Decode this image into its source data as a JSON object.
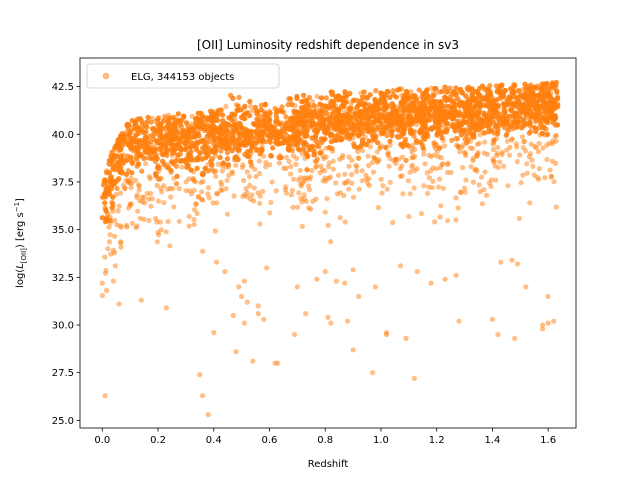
{
  "chart_data": {
    "type": "scatter",
    "title": "[OII] Luminosity redshift dependence in sv3",
    "xlabel": "Redshift",
    "ylabel_parts": {
      "main": "log(",
      "italic": "L",
      "sub": "[OII]",
      "mid": ") [erg s",
      "sup": "−1",
      "end": "]"
    },
    "xlim": [
      -0.08,
      1.7
    ],
    "ylim": [
      24.6,
      44.0
    ],
    "xticks": [
      0.0,
      0.2,
      0.4,
      0.6,
      0.8,
      1.0,
      1.2,
      1.4,
      1.6
    ],
    "xtick_labels": [
      "0.0",
      "0.2",
      "0.4",
      "0.6",
      "0.8",
      "1.0",
      "1.2",
      "1.4",
      "1.6"
    ],
    "yticks": [
      25.0,
      27.5,
      30.0,
      32.5,
      35.0,
      37.5,
      40.0,
      42.5
    ],
    "ytick_labels": [
      "25.0",
      "27.5",
      "30.0",
      "32.5",
      "35.0",
      "37.5",
      "40.0",
      "42.5"
    ],
    "grid": false,
    "legend": {
      "position": "top-left",
      "entries": [
        "ELG, 344153 objects"
      ]
    },
    "series": [
      {
        "name": "ELG, 344153 objects",
        "color": "#ff7f0e",
        "alpha": 0.5,
        "outliers": [
          [
            0.0,
            32.2
          ],
          [
            0.01,
            26.3
          ],
          [
            0.02,
            34.0
          ],
          [
            0.04,
            32.3
          ],
          [
            0.06,
            31.1
          ],
          [
            0.14,
            31.3
          ],
          [
            0.23,
            30.9
          ],
          [
            0.35,
            27.4
          ],
          [
            0.36,
            26.3
          ],
          [
            0.38,
            25.3
          ],
          [
            0.4,
            29.6
          ],
          [
            0.41,
            33.3
          ],
          [
            0.44,
            32.8
          ],
          [
            0.47,
            30.5
          ],
          [
            0.48,
            28.6
          ],
          [
            0.49,
            32.0
          ],
          [
            0.5,
            31.5
          ],
          [
            0.51,
            32.3
          ],
          [
            0.51,
            30.1
          ],
          [
            0.52,
            31.2
          ],
          [
            0.54,
            28.1
          ],
          [
            0.56,
            30.6
          ],
          [
            0.56,
            31.0
          ],
          [
            0.58,
            30.3
          ],
          [
            0.59,
            33.0
          ],
          [
            0.62,
            28.0
          ],
          [
            0.63,
            28.0
          ],
          [
            0.69,
            29.5
          ],
          [
            0.7,
            32.0
          ],
          [
            0.73,
            30.6
          ],
          [
            0.77,
            32.4
          ],
          [
            0.8,
            32.8
          ],
          [
            0.81,
            30.4
          ],
          [
            0.82,
            30.1
          ],
          [
            0.84,
            32.3
          ],
          [
            0.87,
            32.2
          ],
          [
            0.88,
            30.2
          ],
          [
            0.9,
            28.7
          ],
          [
            0.9,
            32.9
          ],
          [
            0.92,
            31.5
          ],
          [
            0.97,
            27.5
          ],
          [
            0.98,
            32.0
          ],
          [
            1.02,
            29.5
          ],
          [
            1.02,
            29.6
          ],
          [
            1.07,
            33.1
          ],
          [
            1.09,
            29.3
          ],
          [
            1.12,
            27.2
          ],
          [
            1.13,
            32.8
          ],
          [
            1.18,
            32.2
          ],
          [
            1.23,
            32.4
          ],
          [
            1.27,
            32.6
          ],
          [
            1.28,
            30.2
          ],
          [
            1.4,
            30.3
          ],
          [
            1.42,
            29.5
          ],
          [
            1.43,
            33.3
          ],
          [
            1.47,
            33.4
          ],
          [
            1.48,
            29.3
          ],
          [
            1.49,
            33.2
          ],
          [
            1.52,
            32.0
          ],
          [
            1.58,
            29.8
          ],
          [
            1.6,
            30.1
          ],
          [
            1.6,
            31.5
          ],
          [
            1.58,
            30.0
          ],
          [
            1.62,
            30.2
          ]
        ]
      }
    ]
  }
}
